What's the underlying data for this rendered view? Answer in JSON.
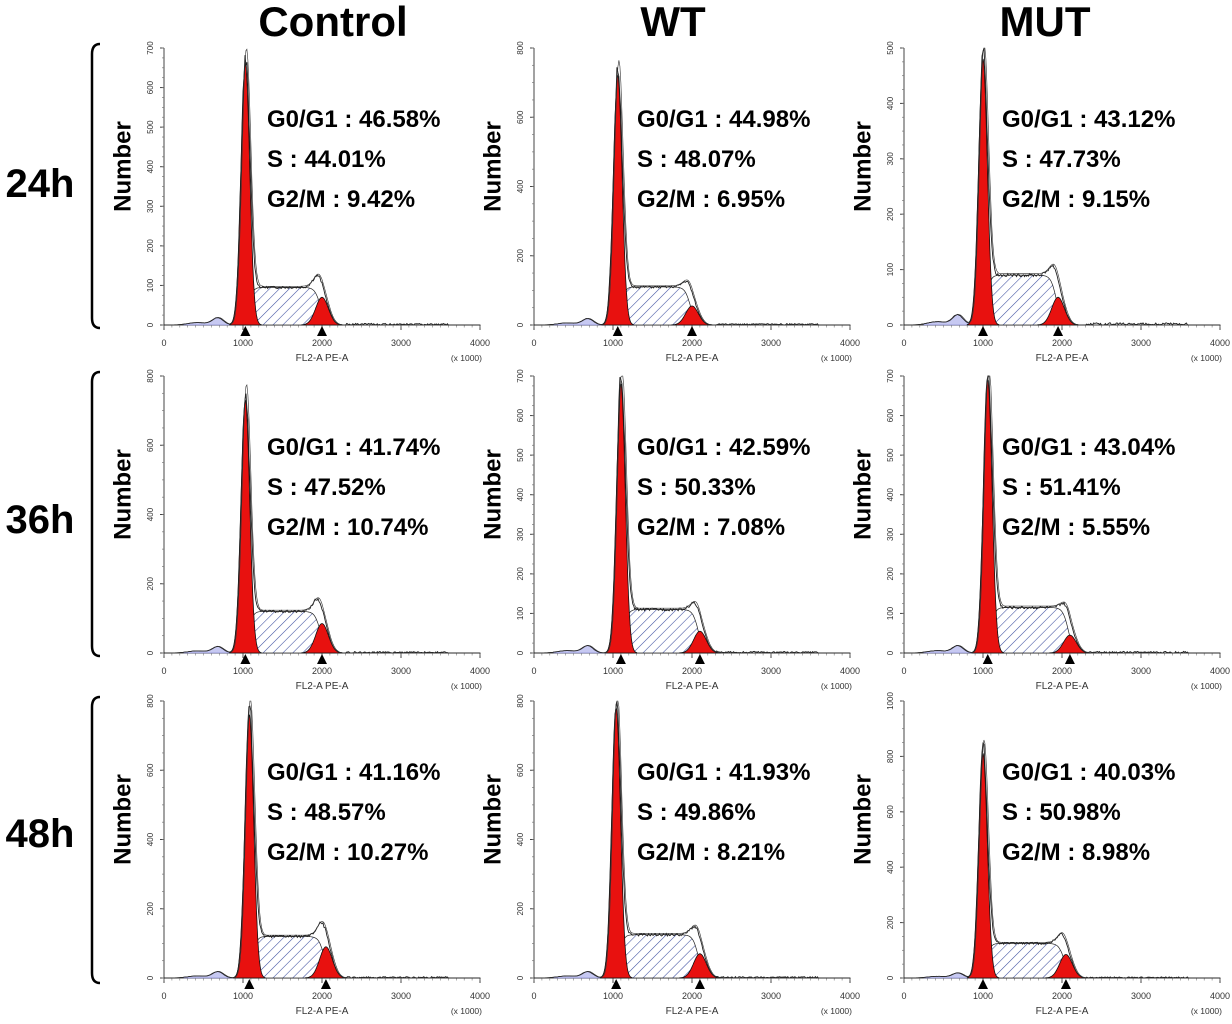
{
  "columns": [
    "Control",
    "WT",
    "MUT"
  ],
  "rows": [
    "24h",
    "36h",
    "48h"
  ],
  "chart_data": {
    "type": "histogram",
    "xlabel": "FL2-A PE-A",
    "x_unit": "(x 1000)",
    "ylabel": "Number",
    "xlim": [
      0,
      4000
    ],
    "xticks": [
      0,
      1000,
      2000,
      3000,
      4000
    ],
    "colors": {
      "g1": "#e8110f",
      "g2": "#e8110f",
      "s": "#3c4ea0",
      "debris": "#c7c9f2"
    },
    "panels": [
      {
        "row": "24h",
        "column": "Control",
        "ylim": [
          0,
          700
        ],
        "yticks": [
          0,
          100,
          200,
          300,
          400,
          500,
          600,
          700
        ],
        "peaks": {
          "g1_x": 1030,
          "g1_y": 660,
          "g2_x": 2000,
          "g2_y": 70,
          "s_level": 95
        },
        "stats": {
          "g0g1": "G0/G1 : 46.58%",
          "s": "S : 44.01%",
          "g2m": "G2/M : 9.42%"
        }
      },
      {
        "row": "24h",
        "column": "WT",
        "ylim": [
          0,
          800
        ],
        "yticks": [
          0,
          200,
          400,
          600,
          800
        ],
        "peaks": {
          "g1_x": 1060,
          "g1_y": 720,
          "g2_x": 2000,
          "g2_y": 55,
          "s_level": 110
        },
        "stats": {
          "g0g1": "G0/G1 : 44.98%",
          "s": "S : 48.07%",
          "g2m": "G2/M : 6.95%"
        }
      },
      {
        "row": "24h",
        "column": "MUT",
        "ylim": [
          0,
          500
        ],
        "yticks": [
          0,
          100,
          200,
          300,
          400,
          500
        ],
        "peaks": {
          "g1_x": 1000,
          "g1_y": 480,
          "g2_x": 1950,
          "g2_y": 50,
          "s_level": 90
        },
        "stats": {
          "g0g1": "G0/G1 : 43.12%",
          "s": "S : 47.73%",
          "g2m": "G2/M : 9.15%"
        }
      },
      {
        "row": "36h",
        "column": "Control",
        "ylim": [
          0,
          800
        ],
        "yticks": [
          0,
          200,
          400,
          600,
          800
        ],
        "peaks": {
          "g1_x": 1030,
          "g1_y": 730,
          "g2_x": 2000,
          "g2_y": 85,
          "s_level": 120
        },
        "stats": {
          "g0g1": "G0/G1 : 41.74%",
          "s": "S : 47.52%",
          "g2m": "G2/M : 10.74%"
        }
      },
      {
        "row": "36h",
        "column": "WT",
        "ylim": [
          0,
          700
        ],
        "yticks": [
          0,
          100,
          200,
          300,
          400,
          500,
          600,
          700
        ],
        "peaks": {
          "g1_x": 1100,
          "g1_y": 680,
          "g2_x": 2100,
          "g2_y": 55,
          "s_level": 110
        },
        "stats": {
          "g0g1": "G0/G1 : 42.59%",
          "s": "S : 50.33%",
          "g2m": "G2/M : 7.08%"
        }
      },
      {
        "row": "36h",
        "column": "MUT",
        "ylim": [
          0,
          700
        ],
        "yticks": [
          0,
          100,
          200,
          300,
          400,
          500,
          600,
          700
        ],
        "peaks": {
          "g1_x": 1060,
          "g1_y": 690,
          "g2_x": 2100,
          "g2_y": 45,
          "s_level": 115
        },
        "stats": {
          "g0g1": "G0/G1 : 43.04%",
          "s": "S : 51.41%",
          "g2m": "G2/M : 5.55%"
        }
      },
      {
        "row": "48h",
        "column": "Control",
        "ylim": [
          0,
          800
        ],
        "yticks": [
          0,
          200,
          400,
          600,
          800
        ],
        "peaks": {
          "g1_x": 1080,
          "g1_y": 760,
          "g2_x": 2050,
          "g2_y": 90,
          "s_level": 120
        },
        "stats": {
          "g0g1": "G0/G1 : 41.16%",
          "s": "S : 48.57%",
          "g2m": "G2/M : 10.27%"
        }
      },
      {
        "row": "48h",
        "column": "WT",
        "ylim": [
          0,
          800
        ],
        "yticks": [
          0,
          200,
          400,
          600,
          800
        ],
        "peaks": {
          "g1_x": 1040,
          "g1_y": 780,
          "g2_x": 2100,
          "g2_y": 70,
          "s_level": 125
        },
        "stats": {
          "g0g1": "G0/G1 : 41.93%",
          "s": "S : 49.86%",
          "g2m": "G2/M : 8.21%"
        }
      },
      {
        "row": "48h",
        "column": "MUT",
        "ylim": [
          0,
          1000
        ],
        "yticks": [
          0,
          200,
          400,
          600,
          800,
          1000
        ],
        "peaks": {
          "g1_x": 1000,
          "g1_y": 810,
          "g2_x": 2050,
          "g2_y": 85,
          "s_level": 125
        },
        "stats": {
          "g0g1": "G0/G1 : 40.03%",
          "s": "S : 50.98%",
          "g2m": "G2/M : 8.98%"
        }
      }
    ]
  }
}
